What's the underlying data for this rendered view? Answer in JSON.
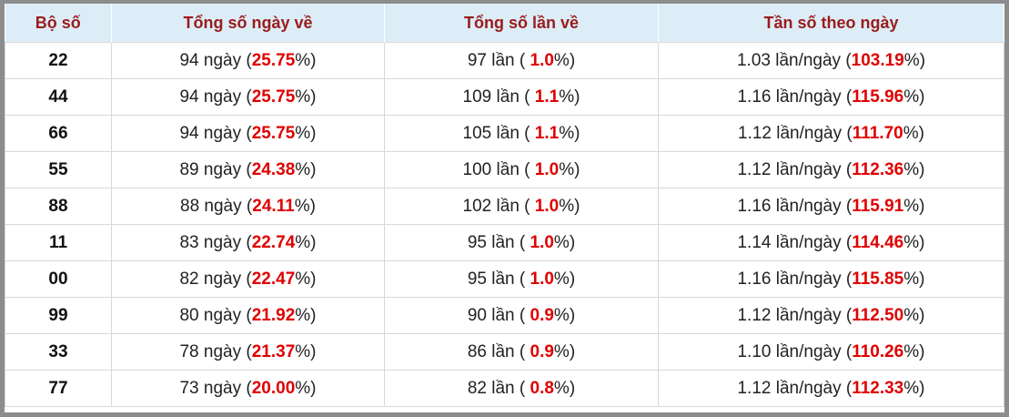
{
  "table": {
    "headers": [
      "Bộ số",
      "Tổng số ngày về",
      "Tổng số lần về",
      "Tần số theo ngày"
    ],
    "rows": [
      {
        "number": "22",
        "days": [
          "94 ngày (",
          "25.75",
          "%)"
        ],
        "times": [
          "97 lần ( ",
          "1.0",
          "%)"
        ],
        "freq": [
          "1.03 lần/ngày (",
          "103.19",
          "%)"
        ]
      },
      {
        "number": "44",
        "days": [
          "94 ngày (",
          "25.75",
          "%)"
        ],
        "times": [
          "109 lần ( ",
          "1.1",
          "%)"
        ],
        "freq": [
          "1.16 lần/ngày (",
          "115.96",
          "%)"
        ]
      },
      {
        "number": "66",
        "days": [
          "94 ngày (",
          "25.75",
          "%)"
        ],
        "times": [
          "105 lần ( ",
          "1.1",
          "%)"
        ],
        "freq": [
          "1.12 lần/ngày (",
          "111.70",
          "%)"
        ]
      },
      {
        "number": "55",
        "days": [
          "89 ngày (",
          "24.38",
          "%)"
        ],
        "times": [
          "100 lần ( ",
          "1.0",
          "%)"
        ],
        "freq": [
          "1.12 lần/ngày (",
          "112.36",
          "%)"
        ]
      },
      {
        "number": "88",
        "days": [
          "88 ngày (",
          "24.11",
          "%)"
        ],
        "times": [
          "102 lần ( ",
          "1.0",
          "%)"
        ],
        "freq": [
          "1.16 lần/ngày (",
          "115.91",
          "%)"
        ]
      },
      {
        "number": "11",
        "days": [
          "83 ngày (",
          "22.74",
          "%)"
        ],
        "times": [
          "95 lần ( ",
          "1.0",
          "%)"
        ],
        "freq": [
          "1.14 lần/ngày (",
          "114.46",
          "%)"
        ]
      },
      {
        "number": "00",
        "days": [
          "82 ngày (",
          "22.47",
          "%)"
        ],
        "times": [
          "95 lần ( ",
          "1.0",
          "%)"
        ],
        "freq": [
          "1.16 lần/ngày (",
          "115.85",
          "%)"
        ]
      },
      {
        "number": "99",
        "days": [
          "80 ngày (",
          "21.92",
          "%)"
        ],
        "times": [
          "90 lần ( ",
          "0.9",
          "%)"
        ],
        "freq": [
          "1.12 lần/ngày (",
          "112.50",
          "%)"
        ]
      },
      {
        "number": "33",
        "days": [
          "78 ngày (",
          "21.37",
          "%)"
        ],
        "times": [
          "86 lần ( ",
          "0.9",
          "%)"
        ],
        "freq": [
          "1.10 lần/ngày (",
          "110.26",
          "%)"
        ]
      },
      {
        "number": "77",
        "days": [
          "73 ngày (",
          "20.00",
          "%)"
        ],
        "times": [
          "82 lần ( ",
          "0.8",
          "%)"
        ],
        "freq": [
          "1.12 lần/ngày (",
          "112.33",
          "%)"
        ]
      }
    ]
  }
}
